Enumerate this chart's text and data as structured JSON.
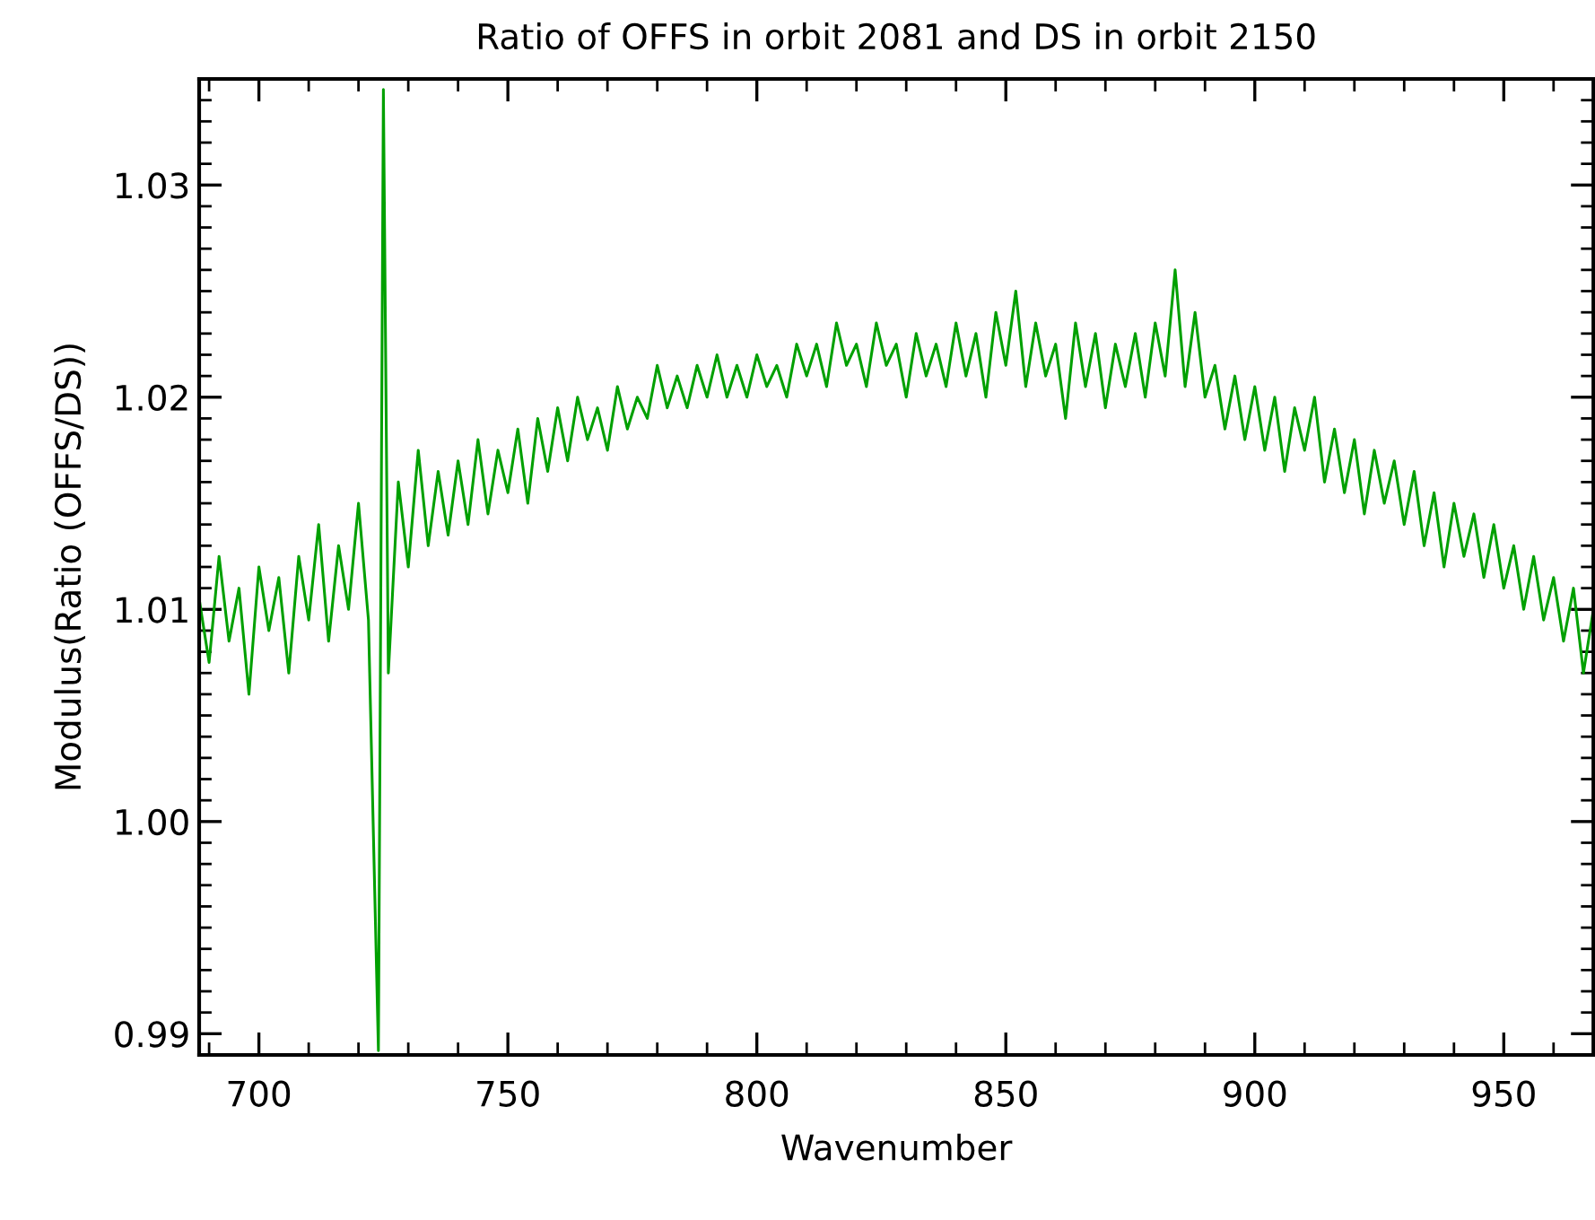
{
  "chart_data": {
    "type": "line",
    "title": "Ratio of OFFS in orbit 2081 and DS in orbit 2150",
    "xlabel": "Wavenumber",
    "ylabel": "Modulus(Ratio (OFFS/DS))",
    "xlim": [
      688,
      968
    ],
    "ylim": [
      0.989,
      1.035
    ],
    "xticks": [
      700,
      750,
      800,
      850,
      900,
      950
    ],
    "yticks": [
      {
        "value": 0.99,
        "label": "0.99"
      },
      {
        "value": 1.0,
        "label": "1.00"
      },
      {
        "value": 1.01,
        "label": "1.01"
      },
      {
        "value": 1.02,
        "label": "1.02"
      },
      {
        "value": 1.03,
        "label": "1.03"
      }
    ],
    "grid": false,
    "line_style": "solid",
    "marker": "none",
    "x": [
      688,
      690,
      692,
      694,
      696,
      698,
      700,
      702,
      704,
      706,
      708,
      710,
      712,
      714,
      716,
      718,
      720,
      722,
      724,
      725,
      726,
      728,
      730,
      732,
      734,
      736,
      738,
      740,
      742,
      744,
      746,
      748,
      750,
      752,
      754,
      756,
      758,
      760,
      762,
      764,
      766,
      768,
      770,
      772,
      774,
      776,
      778,
      780,
      782,
      784,
      786,
      788,
      790,
      792,
      794,
      796,
      798,
      800,
      802,
      804,
      806,
      808,
      810,
      812,
      814,
      816,
      818,
      820,
      822,
      824,
      826,
      828,
      830,
      832,
      834,
      836,
      838,
      840,
      842,
      844,
      846,
      848,
      850,
      852,
      854,
      856,
      858,
      860,
      862,
      864,
      866,
      868,
      870,
      872,
      874,
      876,
      878,
      880,
      882,
      884,
      886,
      888,
      890,
      892,
      894,
      896,
      898,
      900,
      902,
      904,
      906,
      908,
      910,
      912,
      914,
      916,
      918,
      920,
      922,
      924,
      926,
      928,
      930,
      932,
      934,
      936,
      938,
      940,
      942,
      944,
      946,
      948,
      950,
      952,
      954,
      956,
      958,
      960,
      962,
      964,
      966,
      968
    ],
    "series": [
      {
        "color": "#00a000",
        "values": [
          1.0105,
          1.0075,
          1.0125,
          1.0085,
          1.011,
          1.006,
          1.012,
          1.009,
          1.0115,
          1.007,
          1.0125,
          1.0095,
          1.014,
          1.0085,
          1.013,
          1.01,
          1.015,
          1.0095,
          0.9892,
          1.0345,
          1.007,
          1.016,
          1.012,
          1.0175,
          1.013,
          1.0165,
          1.0135,
          1.017,
          1.014,
          1.018,
          1.0145,
          1.0175,
          1.0155,
          1.0185,
          1.015,
          1.019,
          1.0165,
          1.0195,
          1.017,
          1.02,
          1.018,
          1.0195,
          1.0175,
          1.0205,
          1.0185,
          1.02,
          1.019,
          1.0215,
          1.0195,
          1.021,
          1.0195,
          1.0215,
          1.02,
          1.022,
          1.02,
          1.0215,
          1.02,
          1.022,
          1.0205,
          1.0215,
          1.02,
          1.0225,
          1.021,
          1.0225,
          1.0205,
          1.0235,
          1.0215,
          1.0225,
          1.0205,
          1.0235,
          1.0215,
          1.0225,
          1.02,
          1.023,
          1.021,
          1.0225,
          1.0205,
          1.0235,
          1.021,
          1.023,
          1.02,
          1.024,
          1.0215,
          1.025,
          1.0205,
          1.0235,
          1.021,
          1.0225,
          1.019,
          1.0235,
          1.0205,
          1.023,
          1.0195,
          1.0225,
          1.0205,
          1.023,
          1.02,
          1.0235,
          1.021,
          1.026,
          1.0205,
          1.024,
          1.02,
          1.0215,
          1.0185,
          1.021,
          1.018,
          1.0205,
          1.0175,
          1.02,
          1.0165,
          1.0195,
          1.0175,
          1.02,
          1.016,
          1.0185,
          1.0155,
          1.018,
          1.0145,
          1.0175,
          1.015,
          1.017,
          1.014,
          1.0165,
          1.013,
          1.0155,
          1.012,
          1.015,
          1.0125,
          1.0145,
          1.0115,
          1.014,
          1.011,
          1.013,
          1.01,
          1.0125,
          1.0095,
          1.0115,
          1.0085,
          1.011,
          1.007,
          1.01
        ]
      }
    ]
  }
}
